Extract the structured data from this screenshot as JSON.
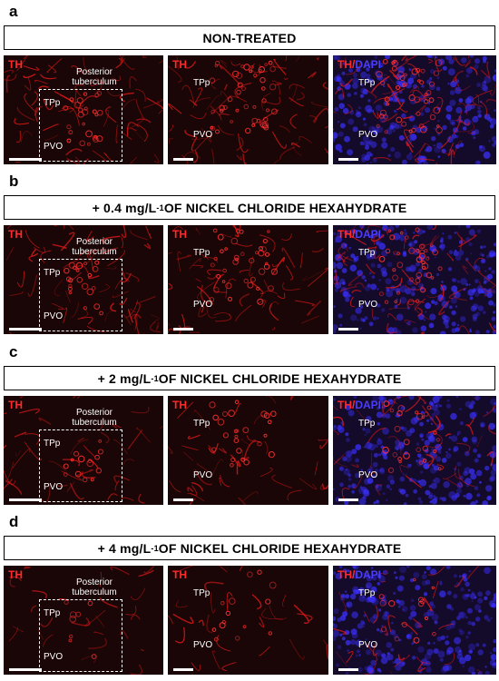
{
  "panels": [
    {
      "letter": "a",
      "title": "NON-TREATED",
      "title_sup": "",
      "title_rest": "",
      "intensity": 1.0
    },
    {
      "letter": "b",
      "title": "+ 0.4 mg/L",
      "title_sup": "-1",
      "title_rest": " OF NICKEL CHLORIDE HEXAHYDRATE",
      "intensity": 0.85
    },
    {
      "letter": "c",
      "title": "+ 2 mg/L",
      "title_sup": "-1",
      "title_rest": " OF NICKEL CHLORIDE HEXAHYDRATE",
      "intensity": 0.55
    },
    {
      "letter": "d",
      "title": "+ 4 mg/L",
      "title_sup": "-1",
      "title_rest": " OF NICKEL CHLORIDE HEXAHYDRATE",
      "intensity": 0.3
    }
  ],
  "labels": {
    "th": "TH",
    "slash": "/",
    "dapi": "DAPI",
    "posterior_line1": "Posterior",
    "posterior_line2": "tuberculum",
    "tpp": "TPp",
    "pvo": "PVO"
  },
  "colors": {
    "th_red": "#ff2a2a",
    "dapi_blue": "#4a3dff",
    "background": "#ffffff"
  }
}
